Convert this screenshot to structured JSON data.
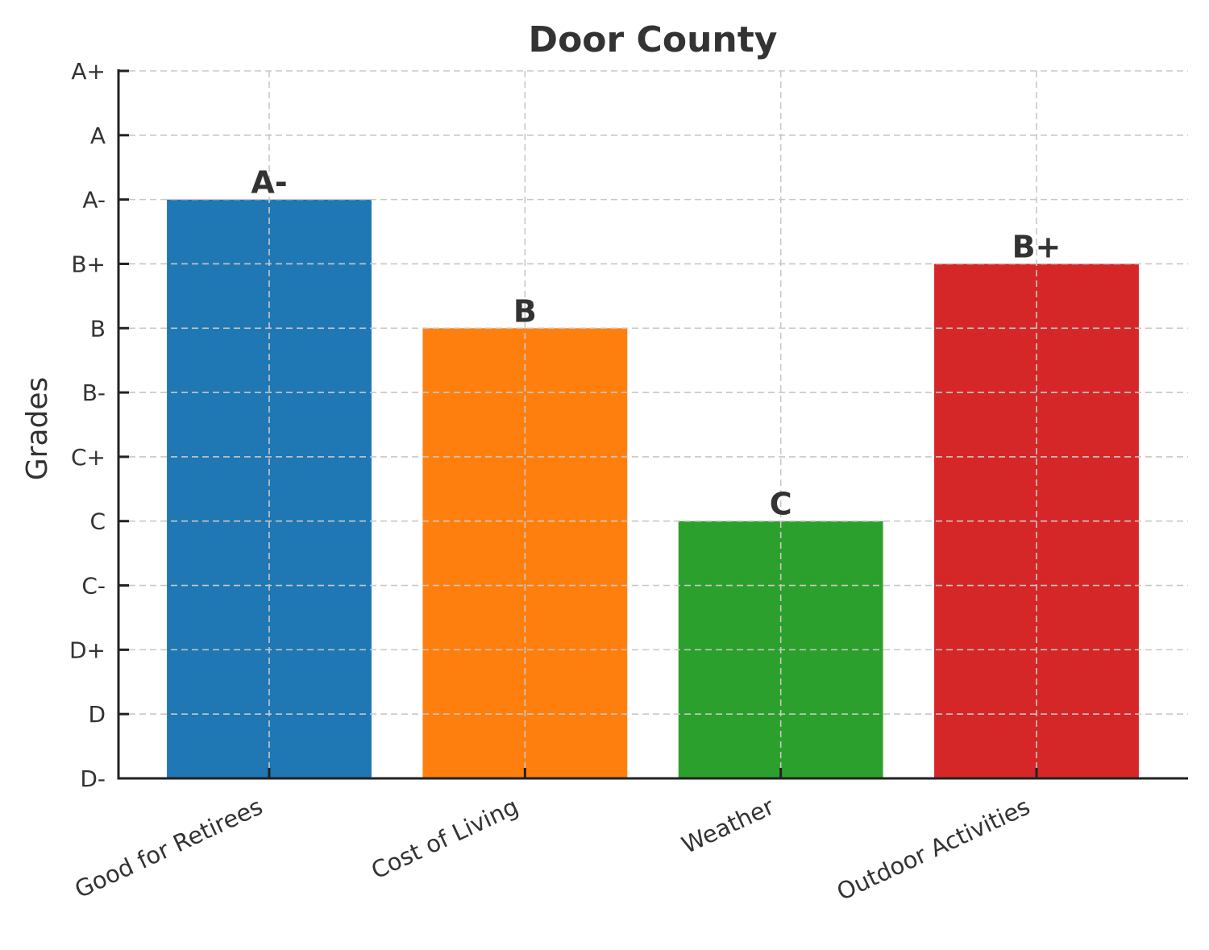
{
  "chart_data": {
    "type": "bar",
    "title": "Door County",
    "xlabel": "",
    "ylabel": "Grades",
    "grade_scale": [
      "D-",
      "D",
      "D+",
      "C-",
      "C",
      "C+",
      "B-",
      "B",
      "B+",
      "A-",
      "A",
      "A+"
    ],
    "categories": [
      "Good for Retirees",
      "Cost of Living",
      "Weather",
      "Outdoor Activities"
    ],
    "values": [
      9,
      7,
      4,
      8
    ],
    "value_labels": [
      "A-",
      "B",
      "C",
      "B+"
    ],
    "colors": [
      "#1f77b4",
      "#ff7f0e",
      "#2ca02c",
      "#d62728"
    ],
    "ylim": [
      0,
      11
    ],
    "grid": true,
    "grid_style": "dashed"
  }
}
